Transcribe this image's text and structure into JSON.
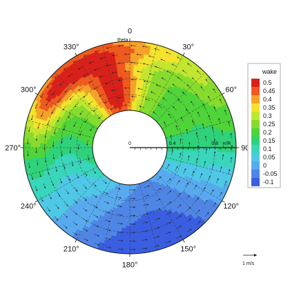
{
  "chart_data": {
    "type": "heatmap",
    "subtype": "polar-contour",
    "theta_axis_label": "theta",
    "radius_axis_label": "r/R",
    "theta_ticks": [
      "0",
      "30°",
      "60°",
      "90°",
      "120°",
      "150°",
      "180°",
      "210°",
      "240°",
      "270°",
      "300°",
      "330°"
    ],
    "radius_ticks": [
      "0",
      "0.4",
      "0.8"
    ],
    "legend": {
      "title": "wake",
      "levels": [
        "0.5",
        "0.45",
        "0.4",
        "0.35",
        "0.3",
        "0.25",
        "0.2",
        "0.15",
        "0.1",
        "0.05",
        "0",
        "-0.05",
        "-0.1"
      ],
      "colors": [
        "#d8211b",
        "#ee5a1f",
        "#f6a12a",
        "#f4e32d",
        "#c2e62f",
        "#86dc2e",
        "#4fd43a",
        "#2fd27a",
        "#39d6bb",
        "#4ec8e6",
        "#58aaef",
        "#4f86e6",
        "#3a5ee0"
      ],
      "placement": "right"
    },
    "vector_reference": "1 m/s",
    "hub_radius": 0.35,
    "wake_contour_samples": [
      {
        "theta": 0,
        "r": 0.4,
        "wake": 0.5
      },
      {
        "theta": 0,
        "r": 0.7,
        "wake": 0.4
      },
      {
        "theta": 0,
        "r": 0.95,
        "wake": 0.3
      },
      {
        "theta": 330,
        "r": 0.45,
        "wake": 0.35
      },
      {
        "theta": 330,
        "r": 0.7,
        "wake": 0.5
      },
      {
        "theta": 330,
        "r": 0.95,
        "wake": 0.4
      },
      {
        "theta": 300,
        "r": 0.8,
        "wake": 0.45
      },
      {
        "theta": 60,
        "r": 0.7,
        "wake": 0.25
      },
      {
        "theta": 90,
        "r": 0.7,
        "wake": 0.2
      },
      {
        "theta": 120,
        "r": 0.7,
        "wake": 0.1
      },
      {
        "theta": 150,
        "r": 0.75,
        "wake": 0.05
      },
      {
        "theta": 180,
        "r": 0.9,
        "wake": -0.05
      },
      {
        "theta": 210,
        "r": 0.75,
        "wake": 0.05
      },
      {
        "theta": 240,
        "r": 0.7,
        "wake": 0.1
      },
      {
        "theta": 270,
        "r": 0.7,
        "wake": 0.2
      }
    ]
  }
}
